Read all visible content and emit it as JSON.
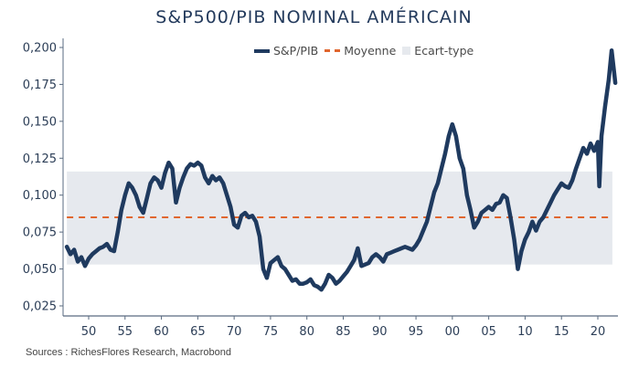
{
  "chart_data": {
    "type": "line",
    "title": "S&P500/PIB NOMINAL AMÉRICAIN",
    "xlabel": "",
    "ylabel": "",
    "xlim": [
      1946.5,
      2022.6
    ],
    "ylim": [
      0.02,
      0.205
    ],
    "grid": false,
    "legend_position": "top-center",
    "legend": [
      {
        "name": "S&P/PIB",
        "style": "line",
        "color": "#1f3a5f"
      },
      {
        "name": "Moyenne",
        "style": "dashed",
        "color": "#e0662e"
      },
      {
        "name": "Ecart-type",
        "style": "band",
        "color": "#e6e9ee"
      }
    ],
    "y_ticks": [
      0.025,
      0.05,
      0.075,
      0.1,
      0.125,
      0.15,
      0.175,
      0.2
    ],
    "y_tick_labels": [
      "0,025",
      "0,050",
      "0,075",
      "0,100",
      "0,125",
      "0,150",
      "0,175",
      "0,200"
    ],
    "x_ticks": [
      1950,
      1955,
      1960,
      1965,
      1970,
      1975,
      1980,
      1985,
      1990,
      1995,
      2000,
      2005,
      2010,
      2015,
      2020
    ],
    "x_tick_labels": [
      "50",
      "55",
      "60",
      "65",
      "70",
      "75",
      "80",
      "85",
      "90",
      "95",
      "00",
      "05",
      "10",
      "15",
      "20"
    ],
    "mean": 0.085,
    "std_band": [
      0.053,
      0.116
    ],
    "band_x_range": [
      1947.0,
      2022.0
    ],
    "series": [
      {
        "name": "S&P/PIB",
        "x": [
          1947.0,
          1947.5,
          1948.0,
          1948.5,
          1949.0,
          1949.5,
          1950.0,
          1950.5,
          1951.0,
          1951.5,
          1952.0,
          1952.5,
          1953.0,
          1953.5,
          1954.0,
          1954.5,
          1955.0,
          1955.5,
          1956.0,
          1956.5,
          1957.0,
          1957.5,
          1958.0,
          1958.5,
          1959.0,
          1959.5,
          1960.0,
          1960.5,
          1961.0,
          1961.5,
          1962.0,
          1962.5,
          1963.0,
          1963.5,
          1964.0,
          1964.5,
          1965.0,
          1965.5,
          1966.0,
          1966.5,
          1967.0,
          1967.5,
          1968.0,
          1968.5,
          1969.0,
          1969.5,
          1970.0,
          1970.5,
          1971.0,
          1971.5,
          1972.0,
          1972.5,
          1973.0,
          1973.5,
          1974.0,
          1974.5,
          1975.0,
          1975.5,
          1976.0,
          1976.5,
          1977.0,
          1977.5,
          1978.0,
          1978.5,
          1979.0,
          1979.5,
          1980.0,
          1980.5,
          1981.0,
          1981.5,
          1982.0,
          1982.5,
          1983.0,
          1983.5,
          1984.0,
          1984.5,
          1985.0,
          1985.5,
          1986.0,
          1986.5,
          1987.0,
          1987.5,
          1988.0,
          1988.5,
          1989.0,
          1989.5,
          1990.0,
          1990.5,
          1991.0,
          1991.5,
          1992.0,
          1992.5,
          1993.0,
          1993.5,
          1994.0,
          1994.5,
          1995.0,
          1995.5,
          1996.0,
          1996.5,
          1997.0,
          1997.5,
          1998.0,
          1998.5,
          1999.0,
          1999.5,
          2000.0,
          2000.5,
          2001.0,
          2001.5,
          2002.0,
          2002.5,
          2003.0,
          2003.5,
          2004.0,
          2004.5,
          2005.0,
          2005.5,
          2006.0,
          2006.5,
          2007.0,
          2007.5,
          2008.0,
          2008.5,
          2009.0,
          2009.5,
          2010.0,
          2010.5,
          2011.0,
          2011.5,
          2012.0,
          2012.5,
          2013.0,
          2013.5,
          2014.0,
          2014.5,
          2015.0,
          2015.5,
          2016.0,
          2016.5,
          2017.0,
          2017.5,
          2018.0,
          2018.5,
          2019.0,
          2019.5,
          2020.0,
          2020.2,
          2020.5,
          2021.0,
          2021.5,
          2021.9,
          2022.2,
          2022.4
        ],
        "values": [
          0.065,
          0.06,
          0.063,
          0.055,
          0.058,
          0.052,
          0.057,
          0.06,
          0.062,
          0.064,
          0.065,
          0.067,
          0.063,
          0.062,
          0.075,
          0.09,
          0.1,
          0.108,
          0.105,
          0.1,
          0.092,
          0.088,
          0.098,
          0.108,
          0.112,
          0.11,
          0.105,
          0.115,
          0.122,
          0.118,
          0.095,
          0.105,
          0.112,
          0.118,
          0.121,
          0.12,
          0.122,
          0.12,
          0.112,
          0.108,
          0.113,
          0.11,
          0.112,
          0.108,
          0.1,
          0.092,
          0.08,
          0.078,
          0.086,
          0.088,
          0.085,
          0.086,
          0.082,
          0.072,
          0.05,
          0.044,
          0.054,
          0.056,
          0.058,
          0.052,
          0.05,
          0.046,
          0.042,
          0.043,
          0.04,
          0.04,
          0.041,
          0.043,
          0.039,
          0.038,
          0.036,
          0.04,
          0.046,
          0.044,
          0.04,
          0.042,
          0.045,
          0.048,
          0.052,
          0.056,
          0.064,
          0.052,
          0.053,
          0.054,
          0.058,
          0.06,
          0.058,
          0.055,
          0.06,
          0.061,
          0.062,
          0.063,
          0.064,
          0.065,
          0.064,
          0.063,
          0.066,
          0.07,
          0.076,
          0.082,
          0.092,
          0.102,
          0.108,
          0.118,
          0.128,
          0.14,
          0.148,
          0.14,
          0.125,
          0.118,
          0.1,
          0.09,
          0.078,
          0.082,
          0.088,
          0.09,
          0.092,
          0.09,
          0.094,
          0.095,
          0.1,
          0.098,
          0.085,
          0.07,
          0.05,
          0.062,
          0.07,
          0.075,
          0.082,
          0.076,
          0.082,
          0.085,
          0.09,
          0.095,
          0.1,
          0.104,
          0.108,
          0.106,
          0.105,
          0.11,
          0.118,
          0.125,
          0.132,
          0.128,
          0.135,
          0.13,
          0.136,
          0.106,
          0.14,
          0.16,
          0.178,
          0.198,
          0.185,
          0.176
        ]
      }
    ]
  },
  "footer": {
    "source": "Sources : RichesFlores Research, Macrobond"
  }
}
